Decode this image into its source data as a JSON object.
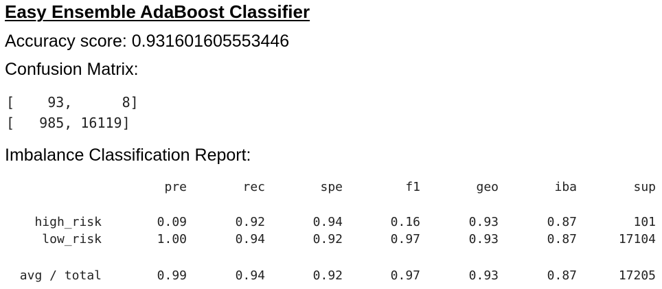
{
  "title": "Easy Ensemble AdaBoost Classifier",
  "accuracy_line": "Accuracy score: 0.931601605553446",
  "confusion_label": "Confusion Matrix:",
  "confusion_matrix": {
    "row1": "[    93,      8]",
    "row2": "[   985, 16119]"
  },
  "report_label": "Imbalance Classification Report:",
  "report": {
    "headers": [
      "pre",
      "rec",
      "spe",
      "f1",
      "geo",
      "iba",
      "sup"
    ],
    "rows": [
      {
        "label": "high_risk",
        "values": [
          "0.09",
          "0.92",
          "0.94",
          "0.16",
          "0.93",
          "0.87",
          "101"
        ]
      },
      {
        "label": "low_risk",
        "values": [
          "1.00",
          "0.94",
          "0.92",
          "0.97",
          "0.93",
          "0.87",
          "17104"
        ]
      },
      {
        "label": "avg / total",
        "values": [
          "0.99",
          "0.94",
          "0.92",
          "0.97",
          "0.93",
          "0.87",
          "17205"
        ]
      }
    ]
  }
}
